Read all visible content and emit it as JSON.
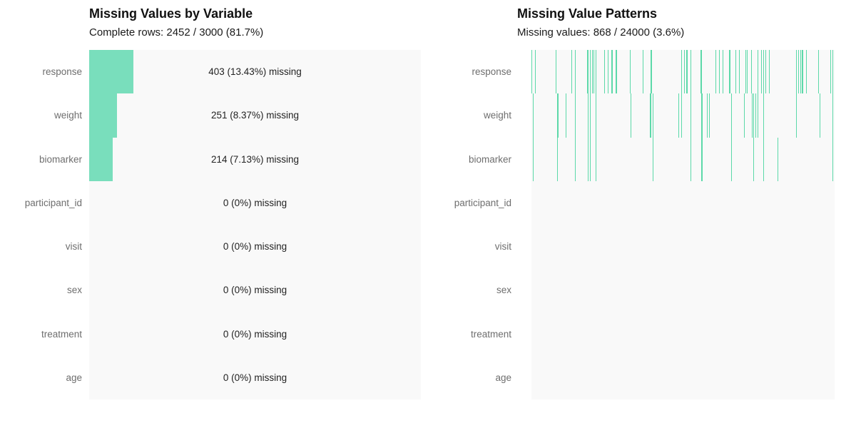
{
  "colors": {
    "bar_green": "#79DEBC",
    "line_green": "#5CD9A9",
    "panel_bg": "#f9f9f9",
    "row_label_gray": "#6e6e6e",
    "value_text": "#222222",
    "title_text": "#111111"
  },
  "chart_data": [
    {
      "type": "bar",
      "orientation": "horizontal",
      "title": "Missing Values by Variable",
      "subtitle": "Complete rows: 2452 / 3000 (81.7%)",
      "complete_rows": 2452,
      "total_rows": 3000,
      "complete_pct": 81.7,
      "xlim": [
        0,
        100
      ],
      "categories": [
        "response",
        "weight",
        "biomarker",
        "participant_id",
        "visit",
        "sex",
        "treatment",
        "age"
      ],
      "values": [
        403,
        251,
        214,
        0,
        0,
        0,
        0,
        0
      ],
      "pct_missing": [
        13.43,
        8.37,
        7.13,
        0,
        0,
        0,
        0,
        0
      ],
      "value_labels": [
        "403 (13.43%) missing",
        "251 (8.37%) missing",
        "214 (7.13%) missing",
        "0 (0%) missing",
        "0 (0%) missing",
        "0 (0%) missing",
        "0 (0%) missing",
        "0 (0%) missing"
      ]
    },
    {
      "type": "heatmap",
      "title": "Missing Value Patterns",
      "subtitle": "Missing values: 868 / 24000 (3.6%)",
      "missing_cells": 868,
      "total_cells": 24000,
      "missing_pct": 3.6,
      "categories": [
        "response",
        "weight",
        "biomarker",
        "participant_id",
        "visit",
        "sex",
        "treatment",
        "age"
      ],
      "missing_marks": {
        "response": [
          [
            0.002,
            1
          ],
          [
            0.014,
            1
          ],
          [
            0.082,
            1
          ],
          [
            0.132,
            1
          ],
          [
            0.144,
            1
          ],
          [
            0.184,
            1
          ],
          [
            0.188,
            1
          ],
          [
            0.193,
            1
          ],
          [
            0.2,
            1
          ],
          [
            0.207,
            1
          ],
          [
            0.212,
            1
          ],
          [
            0.242,
            1
          ],
          [
            0.254,
            1
          ],
          [
            0.264,
            1
          ],
          [
            0.268,
            1
          ],
          [
            0.278,
            1
          ],
          [
            0.282,
            1
          ],
          [
            0.325,
            1
          ],
          [
            0.369,
            1
          ],
          [
            0.395,
            2
          ],
          [
            0.496,
            1
          ],
          [
            0.504,
            1
          ],
          [
            0.511,
            1
          ],
          [
            0.515,
            1
          ],
          [
            0.525,
            1
          ],
          [
            0.56,
            2
          ],
          [
            0.609,
            1
          ],
          [
            0.619,
            1
          ],
          [
            0.631,
            1
          ],
          [
            0.654,
            2
          ],
          [
            0.675,
            1
          ],
          [
            0.687,
            1
          ],
          [
            0.706,
            1
          ],
          [
            0.711,
            1
          ],
          [
            0.725,
            1
          ],
          [
            0.748,
            1
          ],
          [
            0.758,
            1
          ],
          [
            0.767,
            1
          ],
          [
            0.772,
            1
          ],
          [
            0.784,
            1
          ],
          [
            0.875,
            1
          ],
          [
            0.882,
            1
          ],
          [
            0.889,
            1
          ],
          [
            0.894,
            2
          ],
          [
            0.906,
            1
          ],
          [
            0.948,
            1
          ],
          [
            0.988,
            1
          ],
          [
            0.995,
            1
          ]
        ],
        "weight": [
          [
            0.005,
            1
          ],
          [
            0.085,
            1
          ],
          [
            0.089,
            1
          ],
          [
            0.115,
            1
          ],
          [
            0.144,
            1
          ],
          [
            0.186,
            1
          ],
          [
            0.193,
            1
          ],
          [
            0.214,
            1
          ],
          [
            0.329,
            1
          ],
          [
            0.393,
            2
          ],
          [
            0.402,
            1
          ],
          [
            0.487,
            1
          ],
          [
            0.496,
            1
          ],
          [
            0.527,
            1
          ],
          [
            0.562,
            2
          ],
          [
            0.579,
            1
          ],
          [
            0.588,
            1
          ],
          [
            0.659,
            1
          ],
          [
            0.703,
            1
          ],
          [
            0.729,
            1
          ],
          [
            0.734,
            1
          ],
          [
            0.741,
            1
          ],
          [
            0.746,
            1
          ],
          [
            0.765,
            1
          ],
          [
            0.875,
            1
          ],
          [
            0.951,
            1
          ],
          [
            0.995,
            1
          ]
        ],
        "biomarker": [
          [
            0.005,
            1
          ],
          [
            0.085,
            1
          ],
          [
            0.144,
            1
          ],
          [
            0.186,
            1
          ],
          [
            0.193,
            1
          ],
          [
            0.214,
            1
          ],
          [
            0.402,
            1
          ],
          [
            0.527,
            1
          ],
          [
            0.562,
            2
          ],
          [
            0.659,
            1
          ],
          [
            0.734,
            1
          ],
          [
            0.765,
            1
          ],
          [
            0.814,
            1
          ],
          [
            0.995,
            1
          ]
        ],
        "participant_id": [],
        "visit": [],
        "sex": [],
        "treatment": [],
        "age": []
      }
    }
  ]
}
